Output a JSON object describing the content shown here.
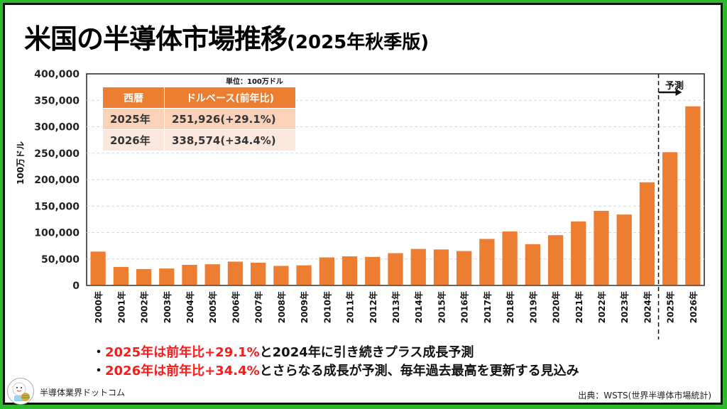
{
  "title": {
    "main": "米国の半導体市場推移",
    "sub": "(2025年秋季版)"
  },
  "table": {
    "unit": "単位：100万ドル",
    "headers": [
      "西暦",
      "ドルベース(前年比)"
    ],
    "rows": [
      {
        "year": "2025年",
        "value": "251,926(+29.1%)"
      },
      {
        "year": "2026年",
        "value": "338,574(+34.4%)"
      }
    ]
  },
  "forecast_label": "予測",
  "bullets": [
    {
      "red": "2025年は前年比+29.1%",
      "black": "と2024年に引き続きプラス成長予測"
    },
    {
      "red": "2026年は前年比+34.4%",
      "black": "とさらなる成長が予測、毎年過去最高を更新する見込み"
    }
  ],
  "bullet_mark": "・",
  "logo_text": "半導体業界ドットコム",
  "source": "出典：WSTS(世界半導体市場統計)",
  "colors": {
    "bar": "#ed7d31",
    "highlight": "#ff1a1a",
    "frame": "#2db82d"
  },
  "chart_data": {
    "type": "bar",
    "title": "米国の半導体市場推移(2025年秋季版)",
    "xlabel": "",
    "ylabel": "100万ドル",
    "ylim": [
      0,
      400000
    ],
    "yticks": [
      0,
      50000,
      100000,
      150000,
      200000,
      250000,
      300000,
      350000,
      400000
    ],
    "ytick_labels": [
      "0",
      "50,000",
      "100,000",
      "150,000",
      "200,000",
      "250,000",
      "300,000",
      "350,000",
      "400,000"
    ],
    "grid": true,
    "categories": [
      "2000年",
      "2001年",
      "2002年",
      "2003年",
      "2004年",
      "2005年",
      "2006年",
      "2007年",
      "2008年",
      "2009年",
      "2010年",
      "2011年",
      "2012年",
      "2013年",
      "2014年",
      "2015年",
      "2016年",
      "2017年",
      "2018年",
      "2019年",
      "2020年",
      "2021年",
      "2022年",
      "2023年",
      "2024年",
      "2025年",
      "2026年"
    ],
    "values": [
      64000,
      35000,
      31000,
      32000,
      39000,
      40000,
      45000,
      43000,
      37000,
      38000,
      53000,
      55000,
      54000,
      61000,
      69000,
      68000,
      65000,
      88000,
      102000,
      78000,
      95000,
      121000,
      141000,
      134000,
      195000,
      251926,
      338574
    ],
    "forecast_start_index": 25,
    "annotations": [
      "予測"
    ]
  }
}
